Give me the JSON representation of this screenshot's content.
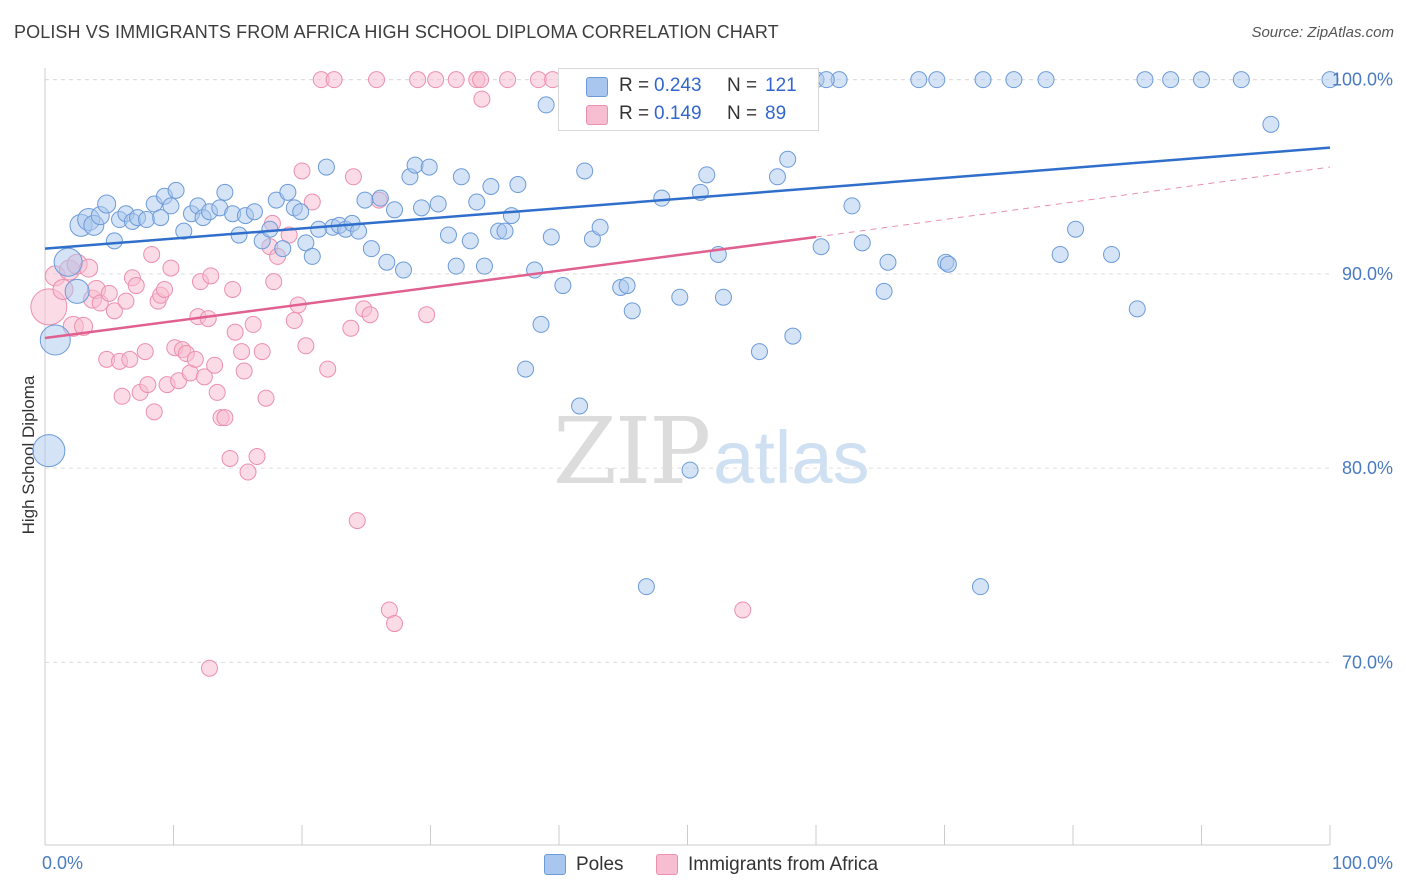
{
  "header": {
    "title": "POLISH VS IMMIGRANTS FROM AFRICA HIGH SCHOOL DIPLOMA CORRELATION CHART",
    "source": "Source: ZipAtlas.com"
  },
  "legend": {
    "series1": {
      "r_label": "R =",
      "r_value": "0.243",
      "n_label": "N =",
      "n_value": "121"
    },
    "series2": {
      "r_label": "R =",
      "r_value": "0.149",
      "n_label": "N =",
      "n_value": "89"
    }
  },
  "bottom_legend": {
    "series1": "Poles",
    "series2": "Immigrants from Africa"
  },
  "watermark": {
    "zip": "ZIP",
    "atlas": "atlas"
  },
  "colors": {
    "poles_fill": "#a9c7ee",
    "poles_stroke": "#6d9bd8",
    "poles_line": "#2f6fcb",
    "africa_fill": "#f7bdd0",
    "africa_stroke": "#ec8fb0",
    "africa_line": "#e0608f",
    "tick_label": "#4a7bc0",
    "grid": "#dddddd"
  },
  "chart_data": {
    "type": "scatter",
    "title": "POLISH VS IMMIGRANTS FROM AFRICA HIGH SCHOOL DIPLOMA CORRELATION CHART",
    "ylabel": "High School Diploma",
    "xlabel": "",
    "xlim": [
      0,
      100
    ],
    "ylim": [
      60.6,
      100.6
    ],
    "x_tick_labels": [
      "0.0%",
      "100.0%"
    ],
    "y_ticks": [
      70,
      80,
      90,
      100
    ],
    "y_tick_labels": [
      "70.0%",
      "80.0%",
      "90.0%",
      "100.0%"
    ],
    "grid": "horizontal dashed",
    "legend_position": "top-center",
    "series": [
      {
        "name": "Poles",
        "r": 0.243,
        "n": 121,
        "trend": {
          "x": [
            0,
            100
          ],
          "y": [
            91.3,
            96.5
          ]
        },
        "points": [
          [
            0.3,
            80.9,
            1.6
          ],
          [
            0.8,
            86.6,
            1.5
          ],
          [
            1.8,
            90.6,
            1.4
          ],
          [
            2.5,
            89.1,
            1.2
          ],
          [
            2.8,
            92.5,
            1.1
          ],
          [
            3.4,
            92.8,
            1.1
          ],
          [
            3.8,
            92.5,
            1.0
          ],
          [
            4.3,
            93.0,
            0.9
          ],
          [
            4.8,
            93.6,
            0.9
          ],
          [
            5.4,
            91.7,
            0.8
          ],
          [
            5.8,
            92.8,
            0.8
          ],
          [
            6.3,
            93.1,
            0.8
          ],
          [
            6.8,
            92.7,
            0.8
          ],
          [
            7.2,
            92.9,
            0.8
          ],
          [
            7.9,
            92.8,
            0.8
          ],
          [
            8.5,
            93.6,
            0.8
          ],
          [
            9.0,
            92.9,
            0.8
          ],
          [
            9.3,
            94.0,
            0.8
          ],
          [
            9.8,
            93.5,
            0.8
          ],
          [
            10.2,
            94.3,
            0.8
          ],
          [
            10.8,
            92.2,
            0.8
          ],
          [
            11.4,
            93.1,
            0.8
          ],
          [
            11.9,
            93.5,
            0.8
          ],
          [
            12.3,
            92.9,
            0.8
          ],
          [
            12.8,
            93.2,
            0.8
          ],
          [
            13.6,
            93.4,
            0.8
          ],
          [
            14.0,
            94.2,
            0.8
          ],
          [
            14.6,
            93.1,
            0.8
          ],
          [
            15.1,
            92.0,
            0.8
          ],
          [
            15.6,
            93.0,
            0.8
          ],
          [
            16.3,
            93.2,
            0.8
          ],
          [
            16.9,
            91.7,
            0.8
          ],
          [
            17.5,
            92.3,
            0.8
          ],
          [
            18.0,
            93.8,
            0.8
          ],
          [
            18.5,
            91.3,
            0.8
          ],
          [
            18.9,
            94.2,
            0.8
          ],
          [
            19.4,
            93.4,
            0.8
          ],
          [
            19.9,
            93.2,
            0.8
          ],
          [
            20.3,
            91.6,
            0.8
          ],
          [
            20.8,
            90.9,
            0.8
          ],
          [
            21.3,
            92.3,
            0.8
          ],
          [
            21.9,
            95.5,
            0.8
          ],
          [
            22.4,
            92.4,
            0.8
          ],
          [
            22.9,
            92.5,
            0.8
          ],
          [
            23.4,
            92.3,
            0.8
          ],
          [
            23.9,
            92.6,
            0.8
          ],
          [
            24.4,
            92.2,
            0.8
          ],
          [
            24.9,
            93.8,
            0.8
          ],
          [
            25.4,
            91.3,
            0.8
          ],
          [
            26.1,
            93.9,
            0.8
          ],
          [
            26.6,
            90.6,
            0.8
          ],
          [
            27.2,
            93.3,
            0.8
          ],
          [
            27.9,
            90.2,
            0.8
          ],
          [
            28.4,
            95.0,
            0.8
          ],
          [
            28.8,
            95.6,
            0.8
          ],
          [
            29.3,
            93.4,
            0.8
          ],
          [
            29.9,
            95.5,
            0.8
          ],
          [
            30.6,
            93.6,
            0.8
          ],
          [
            31.4,
            92.0,
            0.8
          ],
          [
            32.0,
            90.4,
            0.8
          ],
          [
            32.4,
            95.0,
            0.8
          ],
          [
            33.1,
            91.7,
            0.8
          ],
          [
            33.6,
            93.7,
            0.8
          ],
          [
            34.2,
            90.4,
            0.8
          ],
          [
            34.7,
            94.5,
            0.8
          ],
          [
            35.3,
            92.2,
            0.8
          ],
          [
            35.8,
            92.2,
            0.8
          ],
          [
            36.3,
            93.0,
            0.8
          ],
          [
            36.8,
            94.6,
            0.8
          ],
          [
            37.4,
            85.1,
            0.8
          ],
          [
            38.1,
            90.2,
            0.8
          ],
          [
            38.6,
            87.4,
            0.8
          ],
          [
            39.0,
            98.7,
            0.8
          ],
          [
            39.4,
            91.9,
            0.8
          ],
          [
            40.3,
            89.4,
            0.8
          ],
          [
            40.8,
            100.0,
            0.8
          ],
          [
            41.6,
            83.2,
            0.8
          ],
          [
            42.0,
            95.3,
            0.8
          ],
          [
            42.6,
            91.8,
            0.8
          ],
          [
            43.2,
            92.4,
            0.8
          ],
          [
            44.1,
            97.8,
            0.8
          ],
          [
            44.8,
            89.3,
            0.8
          ],
          [
            45.3,
            89.4,
            0.8
          ],
          [
            45.7,
            88.1,
            0.8
          ],
          [
            46.8,
            73.9,
            0.8
          ],
          [
            48.0,
            93.9,
            0.8
          ],
          [
            48.7,
            100.0,
            0.8
          ],
          [
            49.4,
            88.8,
            0.8
          ],
          [
            50.2,
            79.9,
            0.8
          ],
          [
            51.0,
            94.2,
            0.8
          ],
          [
            51.5,
            95.1,
            0.8
          ],
          [
            52.4,
            91.0,
            0.8
          ],
          [
            52.8,
            88.8,
            0.8
          ],
          [
            55.0,
            100.0,
            0.8
          ],
          [
            55.6,
            86.0,
            0.8
          ],
          [
            56.3,
            100.0,
            0.8
          ],
          [
            57.0,
            95.0,
            0.8
          ],
          [
            57.8,
            95.9,
            0.8
          ],
          [
            58.2,
            86.8,
            0.8
          ],
          [
            60.0,
            100.0,
            0.8
          ],
          [
            59.0,
            100.0,
            0.8
          ],
          [
            61.8,
            100.0,
            0.8
          ],
          [
            62.8,
            93.5,
            0.8
          ],
          [
            63.6,
            91.6,
            0.8
          ],
          [
            65.3,
            89.1,
            0.8
          ],
          [
            68.0,
            100.0,
            0.8
          ],
          [
            69.4,
            100.0,
            0.8
          ],
          [
            70.1,
            90.6,
            0.8
          ],
          [
            60.8,
            100.0,
            0.8
          ],
          [
            60.4,
            91.4,
            0.8
          ],
          [
            65.6,
            90.6,
            0.8
          ],
          [
            70.3,
            90.5,
            0.8
          ],
          [
            72.8,
            73.9,
            0.8
          ],
          [
            75.4,
            100.0,
            0.8
          ],
          [
            77.9,
            100.0,
            0.8
          ],
          [
            80.2,
            92.3,
            0.8
          ],
          [
            85.6,
            100.0,
            0.8
          ],
          [
            87.6,
            100.0,
            0.8
          ],
          [
            90.0,
            100.0,
            0.8
          ],
          [
            93.1,
            100.0,
            0.8
          ],
          [
            95.4,
            97.7,
            0.8
          ],
          [
            100.0,
            100.0,
            0.8
          ],
          [
            83.0,
            91.0,
            0.8
          ],
          [
            85.0,
            88.2,
            0.8
          ],
          [
            79.0,
            91.0,
            0.8
          ],
          [
            73.0,
            100.0,
            0.8
          ]
        ]
      },
      {
        "name": "Immigrants from Africa",
        "r": 0.149,
        "n": 89,
        "trend": {
          "x": [
            0,
            60
          ],
          "y": [
            86.7,
            91.9
          ]
        },
        "trend_dashed": {
          "x": [
            60,
            100
          ],
          "y": [
            91.9,
            95.5
          ]
        },
        "points": [
          [
            0.3,
            88.3,
            1.8
          ],
          [
            0.8,
            89.9,
            1.0
          ],
          [
            1.4,
            89.2,
            1.0
          ],
          [
            1.9,
            90.2,
            1.0
          ],
          [
            2.2,
            87.3,
            1.0
          ],
          [
            2.5,
            90.5,
            1.0
          ],
          [
            3.0,
            87.3,
            0.9
          ],
          [
            3.4,
            90.3,
            0.9
          ],
          [
            3.7,
            88.7,
            0.9
          ],
          [
            4.0,
            89.2,
            0.9
          ],
          [
            4.3,
            88.5,
            0.8
          ],
          [
            4.8,
            85.6,
            0.8
          ],
          [
            5.0,
            89.0,
            0.8
          ],
          [
            5.4,
            88.1,
            0.8
          ],
          [
            5.8,
            85.5,
            0.8
          ],
          [
            6.0,
            83.7,
            0.8
          ],
          [
            6.3,
            88.6,
            0.8
          ],
          [
            6.6,
            85.6,
            0.8
          ],
          [
            6.8,
            89.8,
            0.8
          ],
          [
            7.1,
            89.4,
            0.8
          ],
          [
            7.4,
            83.9,
            0.8
          ],
          [
            7.8,
            86.0,
            0.8
          ],
          [
            8.0,
            84.3,
            0.8
          ],
          [
            8.3,
            91.0,
            0.8
          ],
          [
            8.5,
            82.9,
            0.8
          ],
          [
            8.8,
            88.6,
            0.8
          ],
          [
            9.0,
            88.9,
            0.8
          ],
          [
            9.3,
            89.2,
            0.8
          ],
          [
            9.5,
            84.3,
            0.8
          ],
          [
            9.8,
            90.3,
            0.8
          ],
          [
            10.1,
            86.2,
            0.8
          ],
          [
            10.4,
            84.5,
            0.8
          ],
          [
            10.7,
            86.1,
            0.8
          ],
          [
            11.0,
            85.9,
            0.8
          ],
          [
            11.3,
            84.9,
            0.8
          ],
          [
            11.7,
            85.6,
            0.8
          ],
          [
            11.9,
            87.8,
            0.8
          ],
          [
            12.1,
            89.6,
            0.8
          ],
          [
            12.4,
            84.7,
            0.8
          ],
          [
            12.7,
            87.7,
            0.8
          ],
          [
            12.9,
            89.9,
            0.8
          ],
          [
            13.2,
            85.3,
            0.8
          ],
          [
            13.4,
            83.9,
            0.8
          ],
          [
            13.7,
            82.6,
            0.8
          ],
          [
            14.0,
            82.6,
            0.8
          ],
          [
            14.4,
            80.5,
            0.8
          ],
          [
            14.6,
            89.2,
            0.8
          ],
          [
            14.8,
            87.0,
            0.8
          ],
          [
            15.3,
            86.0,
            0.8
          ],
          [
            15.5,
            85.0,
            0.8
          ],
          [
            15.8,
            79.8,
            0.8
          ],
          [
            16.2,
            87.4,
            0.8
          ],
          [
            16.5,
            80.6,
            0.8
          ],
          [
            16.9,
            86.0,
            0.8
          ],
          [
            17.2,
            83.6,
            0.8
          ],
          [
            17.5,
            91.4,
            0.8
          ],
          [
            17.8,
            89.6,
            0.8
          ],
          [
            18.1,
            90.9,
            0.8
          ],
          [
            17.7,
            92.6,
            0.8
          ],
          [
            19.0,
            92.0,
            0.8
          ],
          [
            19.4,
            87.6,
            0.8
          ],
          [
            19.7,
            88.4,
            0.8
          ],
          [
            20.0,
            95.3,
            0.8
          ],
          [
            20.3,
            86.3,
            0.8
          ],
          [
            20.8,
            93.7,
            0.8
          ],
          [
            12.8,
            69.7,
            0.8
          ],
          [
            21.5,
            100.0,
            0.8
          ],
          [
            22.0,
            85.1,
            0.8
          ],
          [
            22.5,
            100.0,
            0.8
          ],
          [
            23.8,
            87.2,
            0.8
          ],
          [
            24.0,
            95.0,
            0.8
          ],
          [
            24.3,
            77.3,
            0.8
          ],
          [
            24.8,
            88.2,
            0.8
          ],
          [
            25.3,
            87.9,
            0.8
          ],
          [
            25.8,
            100.0,
            0.8
          ],
          [
            26.0,
            93.8,
            0.8
          ],
          [
            26.8,
            72.7,
            0.8
          ],
          [
            27.2,
            72.0,
            0.8
          ],
          [
            29.0,
            100.0,
            0.8
          ],
          [
            29.7,
            87.9,
            0.8
          ],
          [
            30.4,
            100.0,
            0.8
          ],
          [
            32.0,
            100.0,
            0.8
          ],
          [
            33.6,
            100.0,
            0.8
          ],
          [
            33.9,
            100.0,
            0.8
          ],
          [
            34.0,
            99.0,
            0.8
          ],
          [
            36.0,
            100.0,
            0.8
          ],
          [
            38.4,
            100.0,
            0.8
          ],
          [
            39.5,
            100.0,
            0.8
          ],
          [
            54.3,
            72.7,
            0.8
          ]
        ]
      }
    ]
  }
}
